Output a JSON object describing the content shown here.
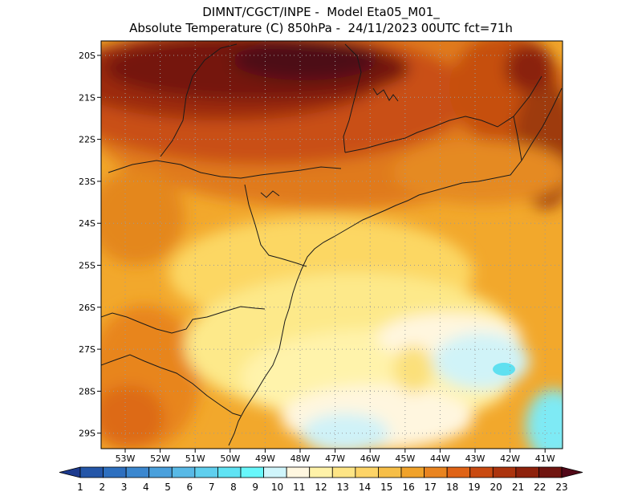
{
  "header": {
    "line1": "DIMNT/CGCT/INPE -  Model Eta05_M01_",
    "line2": "Absolute Temperature (C) 850hPa -  24/11/2023 00UTC fct=71h"
  },
  "map": {
    "lat_labels": [
      "20S",
      "21S",
      "22S",
      "23S",
      "24S",
      "25S",
      "26S",
      "27S",
      "28S",
      "29S"
    ],
    "lon_labels": [
      "53W",
      "52W",
      "51W",
      "50W",
      "49W",
      "48W",
      "47W",
      "46W",
      "45W",
      "44W",
      "43W",
      "42W",
      "41W"
    ]
  },
  "colorbar": {
    "labels": [
      "1",
      "2",
      "3",
      "4",
      "5",
      "6",
      "7",
      "8",
      "9",
      "10",
      "11",
      "12",
      "13",
      "14",
      "15",
      "16",
      "17",
      "18",
      "19",
      "20",
      "21",
      "22",
      "23"
    ],
    "colors": [
      "#1c3a8e",
      "#2456a8",
      "#2d6fbf",
      "#3b87cf",
      "#4aa0dc",
      "#58b9e6",
      "#5fcfee",
      "#5fe3f4",
      "#67f7fb",
      "#cff5fb",
      "#fff7e0",
      "#fff2a8",
      "#fee585",
      "#fdd467",
      "#f6be47",
      "#f0a22a",
      "#e98420",
      "#df6316",
      "#c94a11",
      "#ac340e",
      "#8e220c",
      "#701510",
      "#520818"
    ]
  }
}
